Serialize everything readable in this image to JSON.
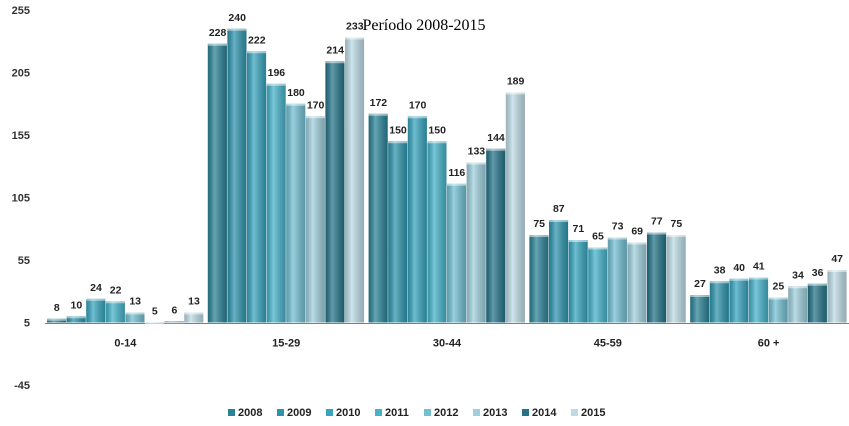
{
  "chart_data": {
    "type": "bar",
    "title": "Período 2008-2015",
    "xlabel": "",
    "ylabel": "",
    "ylim": [
      -45,
      255
    ],
    "yticks": [
      -45,
      5,
      55,
      105,
      155,
      205,
      255
    ],
    "legend_position": "bottom",
    "grid": false,
    "categories": [
      "0-14",
      "15-29",
      "30-44",
      "45-59",
      "60 +"
    ],
    "series": [
      {
        "name": "2008",
        "color": "#2a8296",
        "values": [
          8,
          228,
          172,
          75,
          27
        ]
      },
      {
        "name": "2009",
        "color": "#2e94ad",
        "values": [
          10,
          240,
          150,
          87,
          38
        ]
      },
      {
        "name": "2010",
        "color": "#37a3bd",
        "values": [
          24,
          222,
          170,
          71,
          40
        ]
      },
      {
        "name": "2011",
        "color": "#45b2c9",
        "values": [
          22,
          196,
          150,
          65,
          41
        ]
      },
      {
        "name": "2012",
        "color": "#72bfd2",
        "values": [
          13,
          180,
          116,
          73,
          25
        ]
      },
      {
        "name": "2013",
        "color": "#9fcfdc",
        "values": [
          5,
          170,
          133,
          69,
          34
        ]
      },
      {
        "name": "2014",
        "color": "#247388",
        "values": [
          6,
          214,
          144,
          77,
          36
        ]
      },
      {
        "name": "2015",
        "color": "#bcdbe5",
        "values": [
          13,
          233,
          189,
          75,
          47
        ]
      }
    ]
  }
}
